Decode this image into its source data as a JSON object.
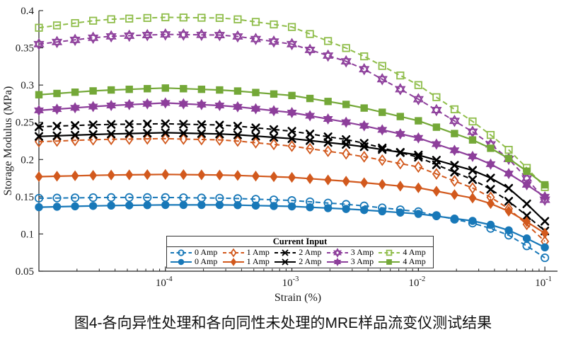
{
  "caption": "图4-各向异性处理和各向同性未处理的MRE样品流变仪测试结果",
  "chart_data": {
    "type": "line",
    "title": "",
    "xlabel": "Strain (%)",
    "ylabel": "Storage Modulus (MPa)",
    "x_scale": "log10",
    "x_domain_log10": [
      -5,
      -0.9
    ],
    "x_major_ticks_log10": [
      -4,
      -3,
      -2,
      -1
    ],
    "x_major_tick_base": "10",
    "ylim": [
      0.05,
      0.4
    ],
    "y_ticks": [
      0.05,
      0.1,
      0.15,
      0.2,
      0.25,
      0.3,
      0.35,
      0.4
    ],
    "grid": "off",
    "markers_per_decade": 7,
    "legend": {
      "title": "Current Input",
      "position": "south-inside",
      "rows": [
        {
          "style": "dashed",
          "entries": [
            "0 Amp",
            "1 Amp",
            "2 Amp",
            "3 Amp",
            "4 Amp"
          ]
        },
        {
          "style": "solid",
          "entries": [
            "0 Amp",
            "1 Amp",
            "2 Amp",
            "3 Amp",
            "4 Amp"
          ]
        }
      ]
    },
    "x_knots_log10": [
      -5,
      -4.5,
      -4,
      -3.5,
      -3,
      -2.5,
      -2,
      -1.5,
      -1.25,
      -1
    ],
    "series": [
      {
        "label": "0 Amp",
        "line": "dashed",
        "marker": "circle",
        "fill": "open",
        "color": "#1878b8",
        "values": [
          0.148,
          0.149,
          0.149,
          0.148,
          0.145,
          0.139,
          0.13,
          0.112,
          0.096,
          0.068
        ]
      },
      {
        "label": "1 Amp",
        "line": "dashed",
        "marker": "diamond",
        "fill": "open",
        "color": "#d2591d",
        "values": [
          0.224,
          0.227,
          0.228,
          0.226,
          0.218,
          0.206,
          0.19,
          0.157,
          0.13,
          0.09
        ]
      },
      {
        "label": "2 Amp",
        "line": "dashed",
        "marker": "x",
        "fill": "open",
        "color": "#000000",
        "values": [
          0.244,
          0.247,
          0.248,
          0.246,
          0.238,
          0.225,
          0.203,
          0.168,
          0.14,
          0.104
        ]
      },
      {
        "label": "3 Amp",
        "line": "dashed",
        "marker": "hexagram",
        "fill": "open",
        "color": "#8d3f9b",
        "values": [
          0.355,
          0.365,
          0.368,
          0.367,
          0.355,
          0.328,
          0.281,
          0.23,
          0.196,
          0.146
        ]
      },
      {
        "label": "4 Amp",
        "line": "dashed",
        "marker": "square",
        "fill": "open",
        "color": "#8fbd4a",
        "values": [
          0.377,
          0.388,
          0.391,
          0.39,
          0.378,
          0.345,
          0.3,
          0.243,
          0.208,
          0.163
        ]
      },
      {
        "label": "0 Amp",
        "line": "solid",
        "marker": "circle",
        "fill": "filled",
        "color": "#1878b8",
        "values": [
          0.136,
          0.138,
          0.139,
          0.139,
          0.137,
          0.133,
          0.127,
          0.116,
          0.103,
          0.082
        ]
      },
      {
        "label": "1 Amp",
        "line": "solid",
        "marker": "diamond",
        "fill": "filled",
        "color": "#d2591d",
        "values": [
          0.177,
          0.179,
          0.18,
          0.179,
          0.176,
          0.17,
          0.162,
          0.146,
          0.128,
          0.101
        ]
      },
      {
        "label": "2 Amp",
        "line": "solid",
        "marker": "x",
        "fill": "filled",
        "color": "#000000",
        "values": [
          0.231,
          0.234,
          0.236,
          0.234,
          0.228,
          0.219,
          0.206,
          0.182,
          0.158,
          0.117
        ]
      },
      {
        "label": "3 Amp",
        "line": "solid",
        "marker": "hexagram",
        "fill": "filled",
        "color": "#8d3f9b",
        "values": [
          0.266,
          0.272,
          0.276,
          0.272,
          0.263,
          0.248,
          0.229,
          0.2,
          0.178,
          0.15
        ]
      },
      {
        "label": "4 Amp",
        "line": "solid",
        "marker": "square",
        "fill": "filled",
        "color": "#74a838",
        "values": [
          0.287,
          0.293,
          0.296,
          0.293,
          0.286,
          0.272,
          0.252,
          0.222,
          0.198,
          0.166
        ]
      }
    ]
  }
}
